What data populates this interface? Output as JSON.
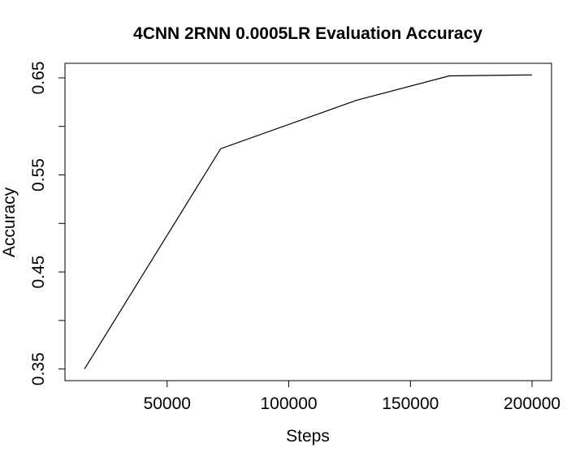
{
  "chart_data": {
    "type": "line",
    "title": "4CNN 2RNN 0.0005LR Evaluation Accuracy",
    "xlabel": "Steps",
    "ylabel": "Accuracy",
    "x": [
      16000,
      72000,
      128000,
      166000,
      200000
    ],
    "series": [
      {
        "values": [
          0.35,
          0.577,
          0.627,
          0.652,
          0.653
        ]
      }
    ],
    "xlim": [
      8000,
      208000
    ],
    "ylim": [
      0.338,
      0.665
    ],
    "xticks": [
      50000,
      100000,
      150000,
      200000
    ],
    "xtick_labels": [
      "50000",
      "100000",
      "150000",
      "200000"
    ],
    "yticks": [
      0.35,
      0.4,
      0.45,
      0.5,
      0.55,
      0.6,
      0.65
    ],
    "ytick_labels": [
      "0.35",
      "",
      "0.45",
      "",
      "0.55",
      "",
      "0.65"
    ],
    "grid": false,
    "legend": "none",
    "line_color": "#000000"
  }
}
